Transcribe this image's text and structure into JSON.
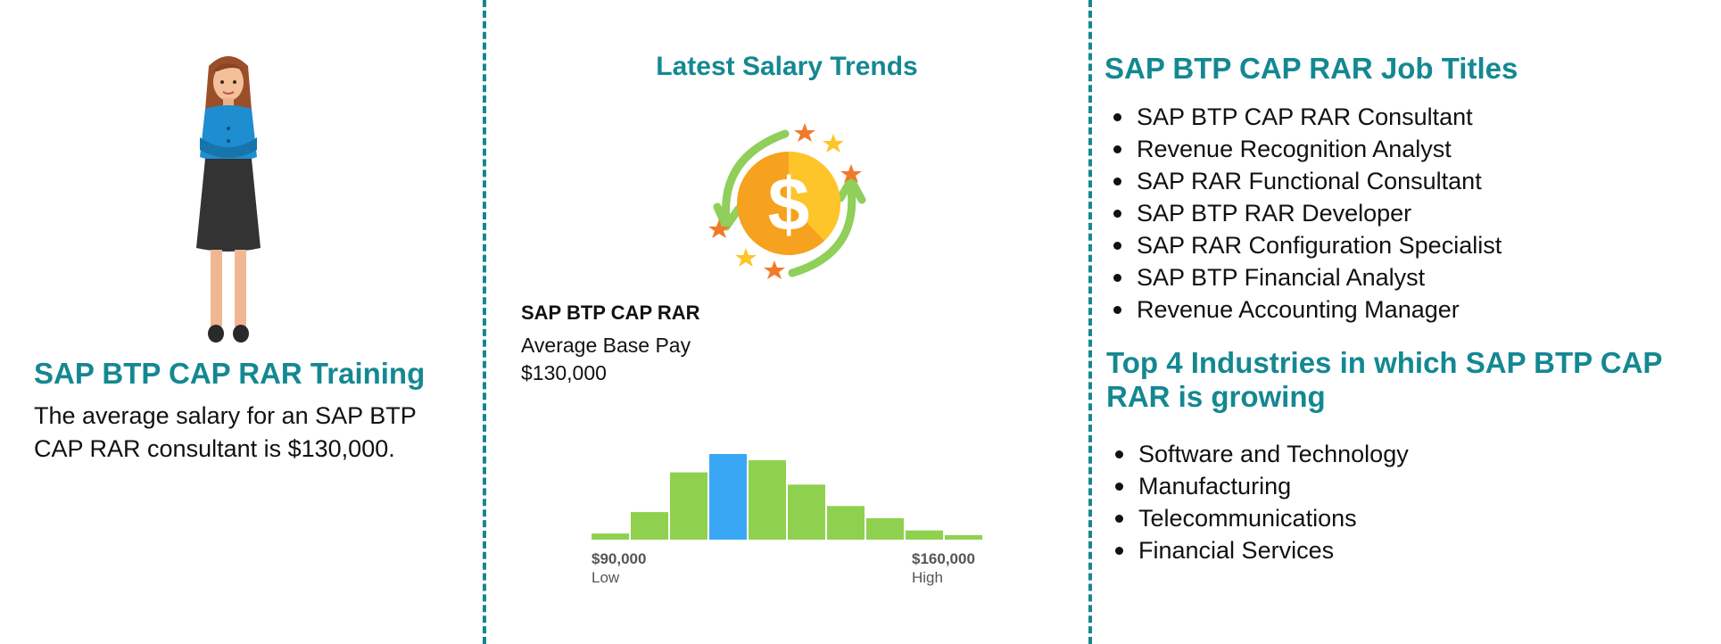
{
  "left": {
    "title": "SAP BTP CAP RAR Training",
    "description": "The average salary for an SAP BTP CAP RAR consultant is $130,000."
  },
  "middle": {
    "title": "Latest Salary Trends",
    "role": "SAP BTP CAP RAR",
    "average_text": "Average Base Pay $130,000",
    "histogram": {
      "bars": [
        2,
        9,
        22,
        28,
        26,
        18,
        11,
        7,
        3,
        1.5
      ],
      "highlight_index": 3,
      "colors": {
        "bar": "#8fd14f",
        "highlight": "#3aa7f5"
      }
    },
    "low_value": "$90,000",
    "low_label": "Low",
    "high_value": "$160,000",
    "high_label": "High"
  },
  "right": {
    "jobs_title": "SAP BTP CAP RAR Job Titles",
    "jobs": [
      "SAP BTP CAP RAR Consultant",
      "Revenue Recognition Analyst",
      "SAP RAR Functional Consultant",
      "SAP BTP RAR Developer",
      "SAP RAR Configuration Specialist",
      "SAP BTP Financial Analyst",
      "Revenue Accounting Manager"
    ],
    "industries_title": "Top 4 Industries in which SAP BTP CAP RAR is growing",
    "industries": [
      "Software and Technology",
      "Manufacturing",
      "Telecommunications",
      "Financial Services"
    ]
  },
  "colors": {
    "accent": "#148892",
    "divider": "#17878f"
  },
  "icons": {
    "illustration": "woman-illustration",
    "salary": "dollar-coin-icon"
  }
}
